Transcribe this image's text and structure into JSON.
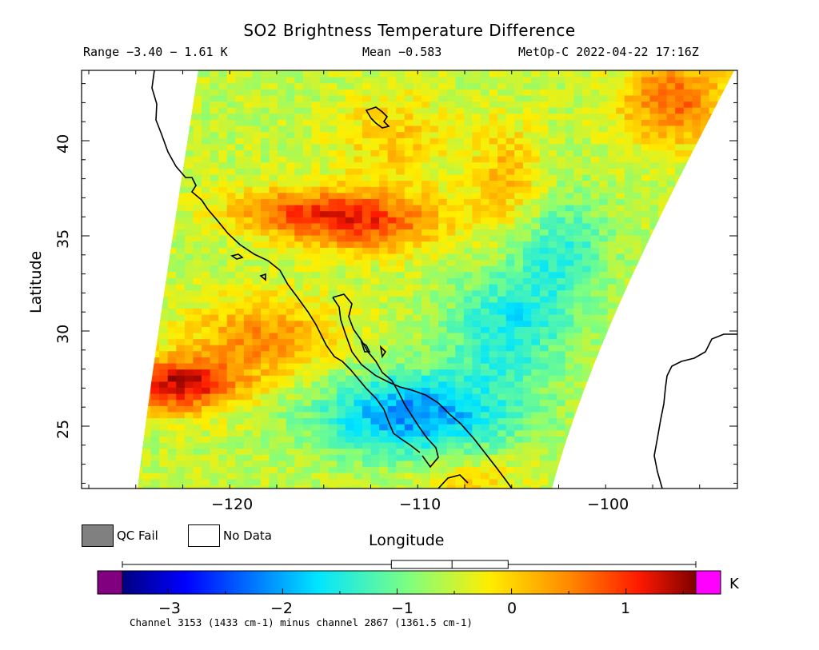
{
  "header": {
    "title": "SO2 Brightness Temperature Difference",
    "range": "Range −3.40 − 1.61 K",
    "mean": "Mean −0.583",
    "satellite_time": "MetOp-C 2022-04-22 17:16Z"
  },
  "axes": {
    "ylabel": "Latitude",
    "xlabel": "Longitude",
    "lat_ticks": [
      "25",
      "30",
      "35",
      "40"
    ],
    "lon_ticks": [
      "−120",
      "−110",
      "−100"
    ]
  },
  "legend": {
    "qc_fail": "QC Fail",
    "no_data": "No Data",
    "qc_fail_color": "#808080"
  },
  "colorbar": {
    "unit": "K",
    "ticks": [
      "−3",
      "−2",
      "−1",
      "0",
      "1"
    ],
    "under_color": "#800080",
    "over_color": "#ff00ff",
    "boxplot": {
      "min": -3.4,
      "q1": -1.05,
      "median": -0.52,
      "q3": -0.03,
      "max": 1.61
    }
  },
  "footnote": "Channel 3153 (1433 cm-1) minus channel 2867 (1361.5 cm-1)"
}
